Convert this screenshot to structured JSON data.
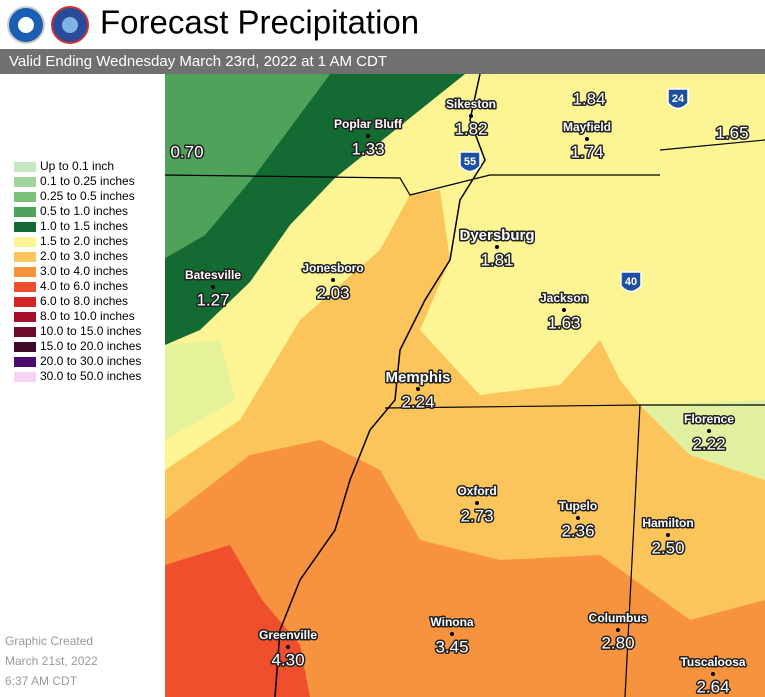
{
  "header": {
    "title": "Forecast Precipitation",
    "subtitle": "Valid Ending Wednesday March 23rd, 2022 at 1 AM CDT"
  },
  "legend": [
    {
      "label": "Up to 0.1 inch",
      "color": "#c6e8c2"
    },
    {
      "label": "0.1 to 0.25 inches",
      "color": "#9fd59a"
    },
    {
      "label": "0.25 to 0.5 inches",
      "color": "#7cc17a"
    },
    {
      "label": "0.5 to 1.0 inches",
      "color": "#4fa25a"
    },
    {
      "label": "1.0 to 1.5 inches",
      "color": "#136b33"
    },
    {
      "label": "1.5 to 2.0 inches",
      "color": "#fdf594"
    },
    {
      "label": "2.0 to 3.0 inches",
      "color": "#fbc55c"
    },
    {
      "label": "3.0 to 4.0 inches",
      "color": "#f7923f"
    },
    {
      "label": "4.0 to 6.0 inches",
      "color": "#ef4f2c"
    },
    {
      "label": "6.0 to 8.0 inches",
      "color": "#d42424"
    },
    {
      "label": "8.0 to 10.0 inches",
      "color": "#a80f2a"
    },
    {
      "label": "10.0 to 15.0 inches",
      "color": "#6e0a2a"
    },
    {
      "label": "15.0 to 20.0 inches",
      "color": "#3d0a2c"
    },
    {
      "label": "20.0 to 30.0 inches",
      "color": "#4a0a6e"
    },
    {
      "label": "30.0 to 50.0 inches",
      "color": "#f6d2f4"
    }
  ],
  "places": [
    {
      "value": "0.70"
    },
    {
      "name": "Poplar Bluff",
      "value": "1.33"
    },
    {
      "name": "Sikeston",
      "value": "1.82"
    },
    {
      "value": "1.84"
    },
    {
      "name": "Mayfield",
      "value": "1.74"
    },
    {
      "value": "1.65"
    },
    {
      "name": "Dyersburg",
      "value": "1.81"
    },
    {
      "name": "Batesville",
      "value": "1.27"
    },
    {
      "name": "Jonesboro",
      "value": "2.03"
    },
    {
      "name": "Jackson",
      "value": "1.63"
    },
    {
      "name": "Memphis",
      "value": "2.24"
    },
    {
      "name": "Florence",
      "value": "2.22"
    },
    {
      "name": "Oxford",
      "value": "2.73"
    },
    {
      "name": "Tupelo",
      "value": "2.36"
    },
    {
      "name": "Hamilton",
      "value": "2.50"
    },
    {
      "name": "Columbus",
      "value": "2.80"
    },
    {
      "name": "Winona",
      "value": "3.45"
    },
    {
      "name": "Greenville",
      "value": "4.30"
    },
    {
      "name": "Tuscaloosa",
      "value": "2.64"
    }
  ],
  "highways": [
    "55",
    "24",
    "40"
  ],
  "footer": [
    "Graphic Created",
    "March 21st, 2022",
    "6:37 AM CDT"
  ]
}
